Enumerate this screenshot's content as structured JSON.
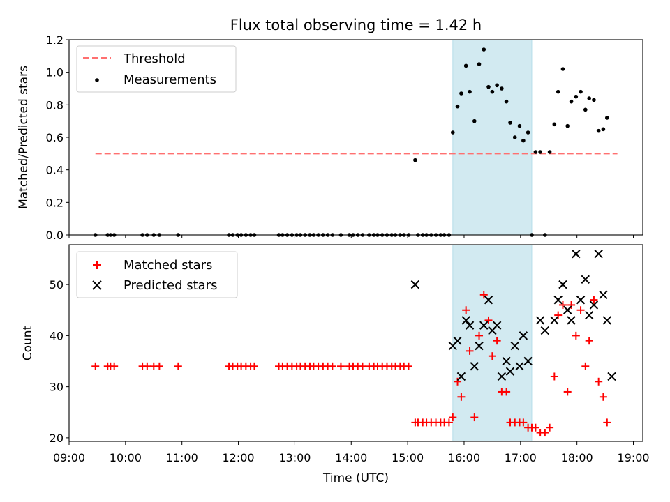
{
  "chart_data": [
    {
      "type": "scatter",
      "title": "Flux total observing time = 1.42 h",
      "xlabel": "",
      "ylabel": "Matched/Predicted stars",
      "xlim": [
        "09:00",
        "19:10"
      ],
      "ylim": [
        0,
        1.2
      ],
      "yticks": [
        "0.0",
        "0.2",
        "0.4",
        "0.6",
        "0.8",
        "1.0",
        "1.2"
      ],
      "shaded_region": {
        "from": "15:48",
        "to": "17:12",
        "color": "#add8e6"
      },
      "legend_position": "upper-left",
      "threshold": {
        "name": "Threshold",
        "value": 0.5,
        "from": "09:28",
        "to": "18:43",
        "color": "#ff7070",
        "style": "dashed"
      },
      "series": [
        {
          "name": "Measurements",
          "marker": "dot",
          "color": "#000000",
          "points": [
            [
              "09:28",
              0
            ],
            [
              "09:41",
              0
            ],
            [
              "09:44",
              0
            ],
            [
              "09:48",
              0
            ],
            [
              "10:18",
              0
            ],
            [
              "10:23",
              0
            ],
            [
              "10:30",
              0
            ],
            [
              "10:36",
              0
            ],
            [
              "10:56",
              0
            ],
            [
              "11:50",
              0
            ],
            [
              "11:54",
              0
            ],
            [
              "11:59",
              0
            ],
            [
              "12:03",
              0
            ],
            [
              "12:08",
              0
            ],
            [
              "12:13",
              0
            ],
            [
              "12:17",
              0
            ],
            [
              "12:43",
              0
            ],
            [
              "12:47",
              0
            ],
            [
              "12:52",
              0
            ],
            [
              "12:57",
              0
            ],
            [
              "13:02",
              0
            ],
            [
              "13:06",
              0
            ],
            [
              "13:11",
              0
            ],
            [
              "13:16",
              0
            ],
            [
              "13:20",
              0
            ],
            [
              "13:25",
              0
            ],
            [
              "13:30",
              0
            ],
            [
              "13:35",
              0
            ],
            [
              "13:40",
              0
            ],
            [
              "13:49",
              0
            ],
            [
              "13:58",
              0
            ],
            [
              "14:02",
              0
            ],
            [
              "14:07",
              0
            ],
            [
              "14:12",
              0
            ],
            [
              "14:19",
              0
            ],
            [
              "14:24",
              0
            ],
            [
              "14:28",
              0
            ],
            [
              "14:33",
              0
            ],
            [
              "14:38",
              0
            ],
            [
              "14:43",
              0
            ],
            [
              "14:47",
              0
            ],
            [
              "14:52",
              0
            ],
            [
              "14:56",
              0
            ],
            [
              "15:01",
              0
            ],
            [
              "15:08",
              0.46
            ],
            [
              "15:11",
              0
            ],
            [
              "15:16",
              0
            ],
            [
              "15:20",
              0
            ],
            [
              "15:25",
              0
            ],
            [
              "15:30",
              0
            ],
            [
              "15:35",
              0
            ],
            [
              "15:39",
              0
            ],
            [
              "15:44",
              0
            ],
            [
              "15:48",
              0.63
            ],
            [
              "15:53",
              0.79
            ],
            [
              "15:57",
              0.87
            ],
            [
              "16:02",
              1.04
            ],
            [
              "16:06",
              0.88
            ],
            [
              "16:11",
              0.7
            ],
            [
              "16:16",
              1.05
            ],
            [
              "16:21",
              1.14
            ],
            [
              "16:26",
              0.91
            ],
            [
              "16:30",
              0.88
            ],
            [
              "16:35",
              0.92
            ],
            [
              "16:40",
              0.9
            ],
            [
              "16:45",
              0.82
            ],
            [
              "16:49",
              0.69
            ],
            [
              "16:54",
              0.6
            ],
            [
              "16:59",
              0.67
            ],
            [
              "17:03",
              0.58
            ],
            [
              "17:08",
              0.63
            ],
            [
              "17:12",
              0
            ],
            [
              "17:16",
              0.51
            ],
            [
              "17:21",
              0.51
            ],
            [
              "17:26",
              0
            ],
            [
              "17:31",
              0.51
            ],
            [
              "17:36",
              0.68
            ],
            [
              "17:40",
              0.88
            ],
            [
              "17:45",
              1.02
            ],
            [
              "17:50",
              0.67
            ],
            [
              "17:54",
              0.82
            ],
            [
              "17:59",
              0.85
            ],
            [
              "18:04",
              0.88
            ],
            [
              "18:09",
              0.77
            ],
            [
              "18:13",
              0.84
            ],
            [
              "18:18",
              0.83
            ],
            [
              "18:23",
              0.64
            ],
            [
              "18:28",
              0.65
            ],
            [
              "18:32",
              0.72
            ]
          ]
        }
      ]
    },
    {
      "type": "scatter",
      "title": "",
      "xlabel": "Time (UTC)",
      "ylabel": "Count",
      "xlim": [
        "09:00",
        "19:10"
      ],
      "ylim": [
        19.3,
        57.8
      ],
      "yticks": [
        "20",
        "30",
        "40",
        "50"
      ],
      "xticks": [
        "09:00",
        "10:00",
        "11:00",
        "12:00",
        "13:00",
        "14:00",
        "15:00",
        "16:00",
        "17:00",
        "18:00",
        "19:00"
      ],
      "shaded_region": {
        "from": "15:48",
        "to": "17:12",
        "color": "#add8e6"
      },
      "legend_position": "upper-left",
      "series": [
        {
          "name": "Matched stars",
          "marker": "plus",
          "color": "#ff0000",
          "points": [
            [
              "09:28",
              34
            ],
            [
              "09:41",
              34
            ],
            [
              "09:44",
              34
            ],
            [
              "09:48",
              34
            ],
            [
              "10:18",
              34
            ],
            [
              "10:23",
              34
            ],
            [
              "10:30",
              34
            ],
            [
              "10:36",
              34
            ],
            [
              "10:56",
              34
            ],
            [
              "11:50",
              34
            ],
            [
              "11:54",
              34
            ],
            [
              "11:59",
              34
            ],
            [
              "12:03",
              34
            ],
            [
              "12:08",
              34
            ],
            [
              "12:13",
              34
            ],
            [
              "12:17",
              34
            ],
            [
              "12:43",
              34
            ],
            [
              "12:47",
              34
            ],
            [
              "12:52",
              34
            ],
            [
              "12:57",
              34
            ],
            [
              "13:02",
              34
            ],
            [
              "13:06",
              34
            ],
            [
              "13:11",
              34
            ],
            [
              "13:16",
              34
            ],
            [
              "13:20",
              34
            ],
            [
              "13:25",
              34
            ],
            [
              "13:30",
              34
            ],
            [
              "13:35",
              34
            ],
            [
              "13:40",
              34
            ],
            [
              "13:49",
              34
            ],
            [
              "13:58",
              34
            ],
            [
              "14:02",
              34
            ],
            [
              "14:07",
              34
            ],
            [
              "14:12",
              34
            ],
            [
              "14:19",
              34
            ],
            [
              "14:24",
              34
            ],
            [
              "14:28",
              34
            ],
            [
              "14:33",
              34
            ],
            [
              "14:38",
              34
            ],
            [
              "14:43",
              34
            ],
            [
              "14:47",
              34
            ],
            [
              "14:52",
              34
            ],
            [
              "14:56",
              34
            ],
            [
              "15:01",
              34
            ],
            [
              "15:08",
              23
            ],
            [
              "15:11",
              23
            ],
            [
              "15:16",
              23
            ],
            [
              "15:20",
              23
            ],
            [
              "15:25",
              23
            ],
            [
              "15:30",
              23
            ],
            [
              "15:35",
              23
            ],
            [
              "15:39",
              23
            ],
            [
              "15:44",
              23
            ],
            [
              "15:48",
              24
            ],
            [
              "15:53",
              31
            ],
            [
              "15:57",
              28
            ],
            [
              "16:02",
              45
            ],
            [
              "16:06",
              37
            ],
            [
              "16:11",
              24
            ],
            [
              "16:16",
              40
            ],
            [
              "16:21",
              48
            ],
            [
              "16:26",
              43
            ],
            [
              "16:30",
              36
            ],
            [
              "16:35",
              39
            ],
            [
              "16:40",
              29
            ],
            [
              "16:45",
              29
            ],
            [
              "16:49",
              23
            ],
            [
              "16:54",
              23
            ],
            [
              "16:59",
              23
            ],
            [
              "17:03",
              23
            ],
            [
              "17:08",
              22
            ],
            [
              "17:12",
              22
            ],
            [
              "17:16",
              22
            ],
            [
              "17:21",
              21
            ],
            [
              "17:26",
              21
            ],
            [
              "17:31",
              22
            ],
            [
              "17:36",
              32
            ],
            [
              "17:40",
              44
            ],
            [
              "17:45",
              46
            ],
            [
              "17:50",
              29
            ],
            [
              "17:54",
              46
            ],
            [
              "17:59",
              40
            ],
            [
              "18:04",
              45
            ],
            [
              "18:09",
              34
            ],
            [
              "18:13",
              39
            ],
            [
              "18:18",
              47
            ],
            [
              "18:23",
              31
            ],
            [
              "18:28",
              28
            ],
            [
              "18:32",
              23
            ]
          ]
        },
        {
          "name": "Predicted stars",
          "marker": "x",
          "color": "#000000",
          "points": [
            [
              "15:08",
              50
            ],
            [
              "15:48",
              38
            ],
            [
              "15:53",
              39
            ],
            [
              "15:57",
              32
            ],
            [
              "16:02",
              43
            ],
            [
              "16:06",
              42
            ],
            [
              "16:11",
              34
            ],
            [
              "16:16",
              38
            ],
            [
              "16:21",
              42
            ],
            [
              "16:26",
              47
            ],
            [
              "16:30",
              41
            ],
            [
              "16:35",
              42
            ],
            [
              "16:40",
              32
            ],
            [
              "16:45",
              35
            ],
            [
              "16:49",
              33
            ],
            [
              "16:54",
              38
            ],
            [
              "16:59",
              34
            ],
            [
              "17:03",
              40
            ],
            [
              "17:08",
              35
            ],
            [
              "17:21",
              43
            ],
            [
              "17:26",
              41
            ],
            [
              "17:36",
              43
            ],
            [
              "17:40",
              47
            ],
            [
              "17:45",
              50
            ],
            [
              "17:50",
              45
            ],
            [
              "17:54",
              43
            ],
            [
              "17:59",
              56
            ],
            [
              "18:04",
              47
            ],
            [
              "18:09",
              51
            ],
            [
              "18:13",
              44
            ],
            [
              "18:18",
              46
            ],
            [
              "18:23",
              56
            ],
            [
              "18:28",
              48
            ],
            [
              "18:32",
              43
            ],
            [
              "18:37",
              32
            ]
          ]
        }
      ]
    }
  ]
}
